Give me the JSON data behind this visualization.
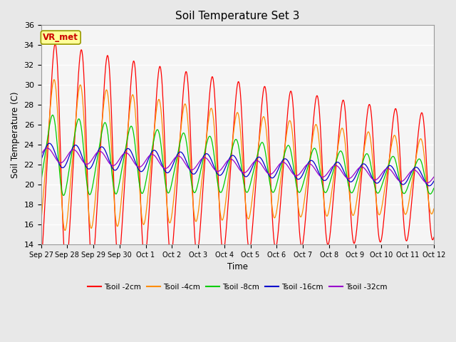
{
  "title": "Soil Temperature Set 3",
  "xlabel": "Time",
  "ylabel": "Soil Temperature (C)",
  "ylim": [
    14,
    36
  ],
  "yticks": [
    14,
    16,
    18,
    20,
    22,
    24,
    26,
    28,
    30,
    32,
    34,
    36
  ],
  "colors": {
    "2cm": "#FF0000",
    "4cm": "#FF8C00",
    "8cm": "#00CC00",
    "16cm": "#0000CC",
    "32cm": "#9900CC"
  },
  "annotation_text": "VR_met",
  "annotation_color": "#CC0000",
  "annotation_bg": "#FFFF99",
  "bg_color": "#E8E8E8",
  "plot_bg": "#F5F5F5",
  "n_points": 1500,
  "tick_labels": [
    "Sep 27",
    "Sep 28",
    "Sep 29",
    "Sep 30",
    "Oct 1",
    "Oct 2",
    "Oct 3",
    "Oct 4",
    "Oct 5",
    "Oct 6",
    "Oct 7",
    "Oct 8",
    "Oct 9",
    "Oct 10",
    "Oct 11",
    "Oct 12"
  ],
  "legend_labels": [
    "Tsoil -2cm",
    "Tsoil -4cm",
    "Tsoil -8cm",
    "Tsoil -16cm",
    "Tsoil -32cm"
  ]
}
